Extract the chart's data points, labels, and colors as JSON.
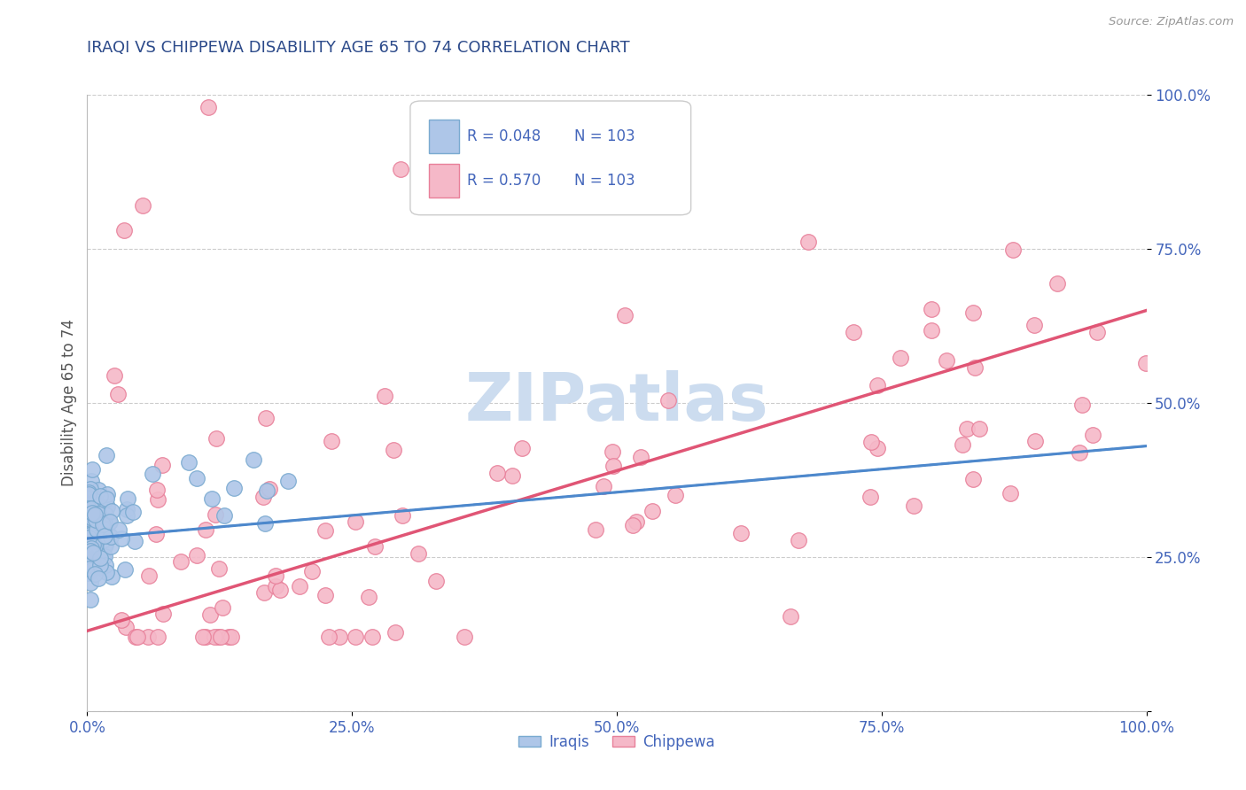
{
  "title": "IRAQI VS CHIPPEWA DISABILITY AGE 65 TO 74 CORRELATION CHART",
  "source": "Source: ZipAtlas.com",
  "ylabel": "Disability Age 65 to 74",
  "legend_labels": [
    "Iraqis",
    "Chippewa"
  ],
  "iraqis_R": 0.048,
  "iraqis_N": 103,
  "chippewa_R": 0.57,
  "chippewa_N": 103,
  "iraqis_scatter_color": "#aec6e8",
  "iraqis_scatter_edge": "#7aaad0",
  "chippewa_scatter_color": "#f5b8c8",
  "chippewa_scatter_edge": "#e8809a",
  "iraqis_line_color": "#4d88cc",
  "chippewa_line_color": "#e05575",
  "title_color": "#2c4a8a",
  "tick_color": "#4466bb",
  "legend_value_color": "#4466bb",
  "legend_text_color": "#222222",
  "background_color": "#ffffff",
  "watermark_color": "#ccdcef",
  "grid_color": "#cccccc",
  "xlim": [
    0.0,
    1.0
  ],
  "ylim": [
    0.0,
    1.0
  ],
  "iraqi_line_x0": 0.0,
  "iraqi_line_y0": 0.28,
  "iraqi_line_x1": 1.0,
  "iraqi_line_y1": 0.43,
  "chippewa_line_x0": 0.0,
  "chippewa_line_y0": 0.13,
  "chippewa_line_x1": 1.0,
  "chippewa_line_y1": 0.65
}
